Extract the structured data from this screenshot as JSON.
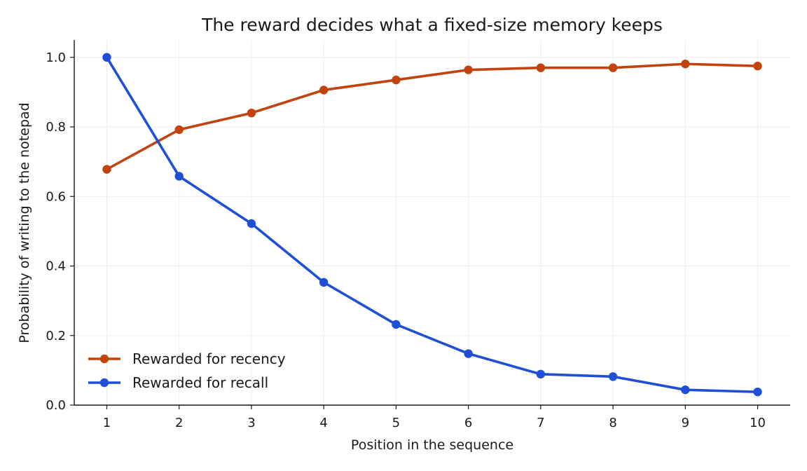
{
  "chart_data": {
    "type": "line",
    "title": "The reward decides what a fixed-size memory keeps",
    "xlabel": "Position in the sequence",
    "ylabel": "Probability of writing to the notepad",
    "x": [
      1,
      2,
      3,
      4,
      5,
      6,
      7,
      8,
      9,
      10
    ],
    "xlim": [
      0.55,
      10.45
    ],
    "ylim": [
      0.0,
      1.05
    ],
    "yticks": [
      0.0,
      0.2,
      0.4,
      0.6,
      0.8,
      1.0
    ],
    "ytick_labels": [
      "0.0",
      "0.2",
      "0.4",
      "0.6",
      "0.8",
      "1.0"
    ],
    "xtick_labels": [
      "1",
      "2",
      "3",
      "4",
      "5",
      "6",
      "7",
      "8",
      "9",
      "10"
    ],
    "grid": true,
    "legend_position": "lower-left",
    "series": [
      {
        "name": "Rewarded for recency",
        "color": "#c1440e",
        "marker": "circle",
        "values": [
          0.678,
          0.792,
          0.84,
          0.906,
          0.935,
          0.964,
          0.97,
          0.97,
          0.981,
          0.975
        ]
      },
      {
        "name": "Rewarded for recall",
        "color": "#1f4fd6",
        "marker": "circle",
        "values": [
          1.0,
          0.658,
          0.522,
          0.353,
          0.232,
          0.148,
          0.089,
          0.082,
          0.044,
          0.038
        ]
      }
    ]
  }
}
